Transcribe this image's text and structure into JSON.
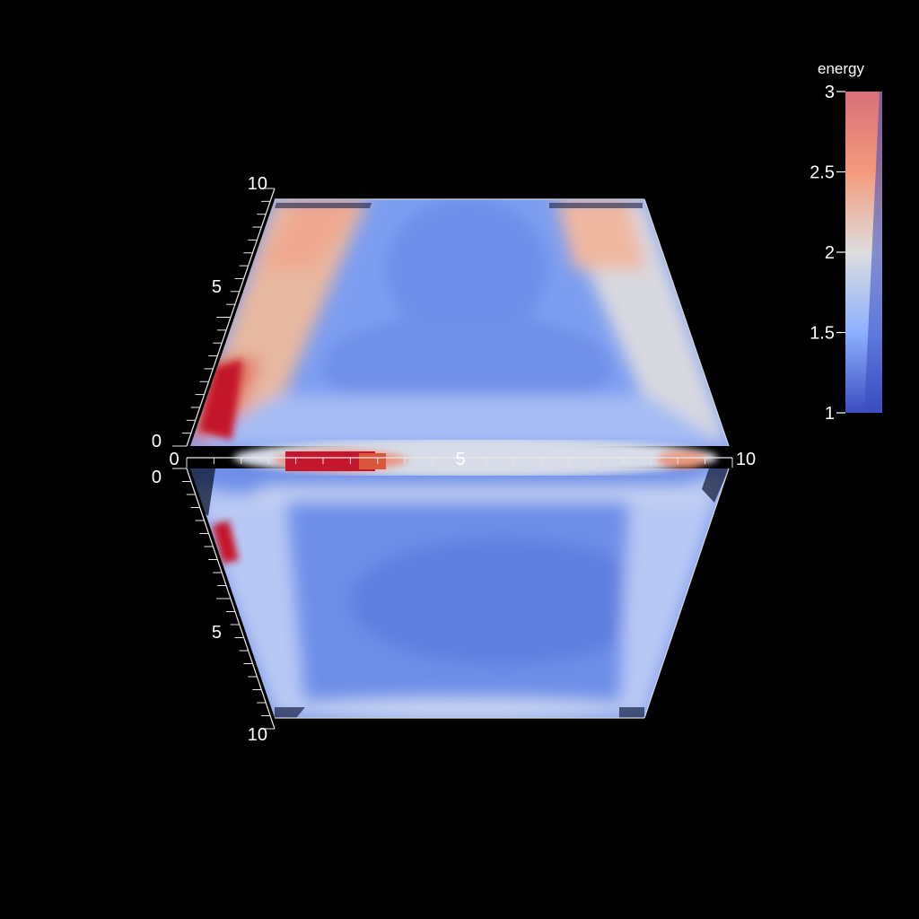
{
  "chart_data": {
    "type": "heatmap",
    "view": "3D surface of a cube, orthographic",
    "scalar": "energy",
    "colormap": "coolwarm",
    "colors": {
      "low": "#3b4cc0",
      "mid": "#dddddd",
      "high": "#b40426",
      "background": "#000000"
    },
    "colorbar": {
      "title": "energy",
      "range": [
        1,
        3
      ],
      "ticks": [
        {
          "value": 1,
          "label": "1"
        },
        {
          "value": 1.5,
          "label": "1.5"
        },
        {
          "value": 2,
          "label": "2"
        },
        {
          "value": 2.5,
          "label": "2.5"
        },
        {
          "value": 3,
          "label": "3"
        }
      ]
    },
    "axes": [
      {
        "id": "horizontal-axis",
        "range": [
          0,
          10
        ],
        "labels": [
          {
            "value": 0,
            "label": "0"
          },
          {
            "value": 5,
            "label": "5"
          },
          {
            "value": 10,
            "label": "10"
          }
        ]
      },
      {
        "id": "upper-left-axis",
        "range": [
          0,
          10
        ],
        "labels": [
          {
            "value": 0,
            "label": "0"
          },
          {
            "value": 5,
            "label": "5"
          },
          {
            "value": 10,
            "label": "10"
          }
        ]
      },
      {
        "id": "lower-left-axis",
        "range": [
          0,
          10
        ],
        "labels": [
          {
            "value": 0,
            "label": "0"
          },
          {
            "value": 5,
            "label": "5"
          },
          {
            "value": 10,
            "label": "10"
          }
        ]
      }
    ],
    "minor_ticks_per_axis": 20,
    "faces": [
      {
        "name": "upper-face",
        "dominant_energy": 1.45,
        "edge_energy_max": 3.0
      },
      {
        "name": "lower-face",
        "dominant_energy": 1.35,
        "edge_energy_max": 3.0
      },
      {
        "name": "middle-band",
        "dominant_energy": 1.9,
        "hot_region_energy": 3.0
      }
    ]
  }
}
